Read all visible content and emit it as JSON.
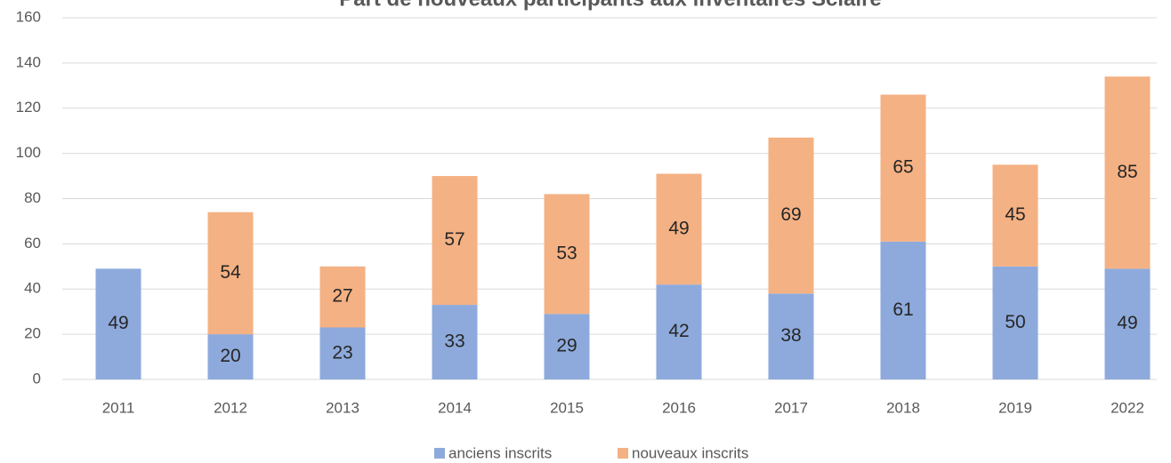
{
  "chart_data": {
    "type": "stacked_bar",
    "title": "Part de nouveaux participants aux inventaires Sciaire",
    "categories": [
      "2011",
      "2012",
      "2013",
      "2014",
      "2015",
      "2016",
      "2017",
      "2018",
      "2019",
      "2022"
    ],
    "series": [
      {
        "name": "anciens inscrits",
        "color": "#8eaadc",
        "values": [
          49,
          20,
          23,
          33,
          29,
          42,
          38,
          61,
          50,
          49
        ]
      },
      {
        "name": "nouveaux inscrits",
        "color": "#f4b183",
        "values": [
          null,
          54,
          27,
          57,
          53,
          49,
          69,
          65,
          45,
          85
        ]
      }
    ],
    "ylim": [
      0,
      160
    ],
    "yticks": [
      0,
      20,
      40,
      60,
      80,
      100,
      120,
      140,
      160
    ],
    "grid": true,
    "legend": "bottom"
  }
}
